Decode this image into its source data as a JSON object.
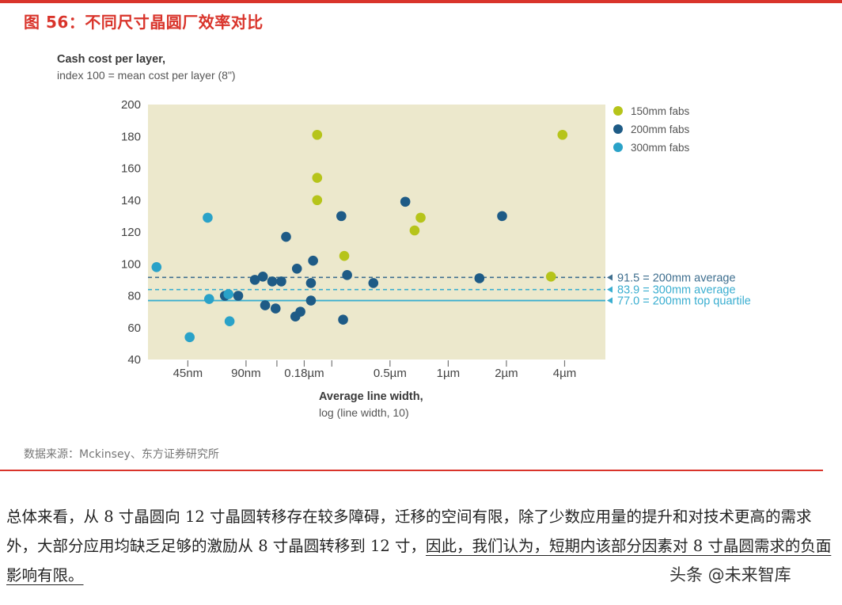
{
  "figure": {
    "title": "图 56：不同尺寸晶圆厂效率对比",
    "source": "数据来源：Mckinsey、东方证券研究所"
  },
  "chart_data": {
    "type": "scatter",
    "ylabel": "Cash cost per layer,",
    "ylabel_sub": "index 100 = mean cost per layer (8\")",
    "xlabel": "Average line width,",
    "xlabel_sub": "log (line width, 10)",
    "ylim": [
      40,
      200
    ],
    "yticks": [
      40,
      60,
      80,
      100,
      120,
      140,
      160,
      180,
      200
    ],
    "x_scale": "log",
    "xlim_um": [
      0.028,
      6.5
    ],
    "xticks": [
      {
        "label": "45nm",
        "um": 0.045
      },
      {
        "label": "90nm",
        "um": 0.09
      },
      {
        "label": "",
        "um": 0.13
      },
      {
        "label": "0.18µm",
        "um": 0.18
      },
      {
        "label": "",
        "um": 0.25
      },
      {
        "label": "0.5µm",
        "um": 0.5
      },
      {
        "label": "1µm",
        "um": 1
      },
      {
        "label": "2µm",
        "um": 2
      },
      {
        "label": "4µm",
        "um": 4
      }
    ],
    "grid": false,
    "legend_position": "top-right",
    "series": [
      {
        "name": "150mm fabs",
        "color": "#b6c41a",
        "points": [
          [
            0.21,
            181
          ],
          [
            0.21,
            154
          ],
          [
            0.21,
            140
          ],
          [
            0.29,
            105
          ],
          [
            0.72,
            129
          ],
          [
            0.67,
            121
          ],
          [
            3.4,
            92
          ],
          [
            3.9,
            181
          ]
        ]
      },
      {
        "name": "200mm fabs",
        "color": "#1e5b86",
        "points": [
          [
            0.28,
            130
          ],
          [
            0.6,
            139
          ],
          [
            1.9,
            130
          ],
          [
            0.145,
            117
          ],
          [
            0.2,
            102
          ],
          [
            0.165,
            97
          ],
          [
            0.3,
            93
          ],
          [
            0.11,
            92
          ],
          [
            0.1,
            90
          ],
          [
            0.123,
            89
          ],
          [
            0.137,
            89
          ],
          [
            0.195,
            88
          ],
          [
            0.41,
            88
          ],
          [
            1.45,
            91
          ],
          [
            0.07,
            80
          ],
          [
            0.082,
            80
          ],
          [
            0.113,
            74
          ],
          [
            0.128,
            72
          ],
          [
            0.195,
            77
          ],
          [
            0.162,
            67
          ],
          [
            0.172,
            70
          ],
          [
            0.286,
            65
          ]
        ]
      },
      {
        "name": "300mm fabs",
        "color": "#2aa2c8",
        "points": [
          [
            0.031,
            98
          ],
          [
            0.057,
            129
          ],
          [
            0.058,
            78
          ],
          [
            0.073,
            81
          ],
          [
            0.074,
            64
          ],
          [
            0.046,
            54
          ]
        ]
      }
    ],
    "reference_lines": [
      {
        "value": 91.5,
        "label": "91.5 = 200mm average",
        "color": "#3f6f8f",
        "style": "dashed"
      },
      {
        "value": 83.9,
        "label": "83.9 = 300mm average",
        "color": "#3aaed0",
        "style": "dashed"
      },
      {
        "value": 77.0,
        "label": "77.0 = 200mm top quartile",
        "color": "#3aaed0",
        "style": "solid"
      }
    ]
  },
  "paragraph": {
    "text_main": "总体来看，从 8 寸晶圆向 12 寸晶圆转移存在较多障碍，迁移的空间有限，除了少数应用量的提升和对技术更高的需求外，大部分应用均缺乏足够的激励从 8 寸晶圆转移到 12 寸，",
    "text_underlined": "因此，我们认为，短期内该部分因素对 8 寸晶圆需求的负面影响有限。"
  },
  "watermark": "头条 @未来智库"
}
